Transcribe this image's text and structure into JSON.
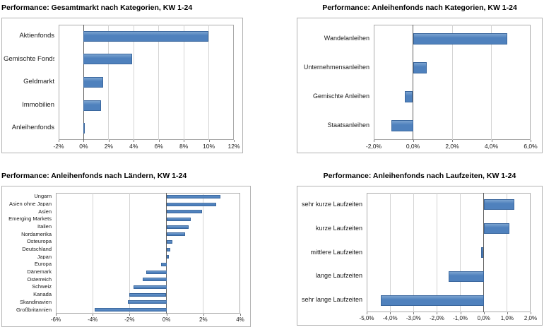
{
  "colors": {
    "bar_fill": "#4F81BD",
    "bar_border": "#3A679E",
    "gridline": "#D4D4D4",
    "zero_axis": "#5F5F5F",
    "plot_border": "#ABABAB",
    "chart_border": "#B3B3B3",
    "background": "#FFFFFF"
  },
  "chart_data": [
    {
      "type": "bar",
      "orientation": "horizontal",
      "title": "Performance: Gesamtmarkt nach Kategorien, KW 1-24",
      "categories": [
        "Aktienfonds",
        "Gemischte Fonds",
        "Geldmarkt",
        "Immobilien",
        "Anleihenfonds"
      ],
      "values": [
        10.0,
        3.9,
        1.6,
        1.4,
        0.1
      ],
      "xlim": [
        -2,
        12
      ],
      "xticks": [
        -2,
        0,
        2,
        4,
        6,
        8,
        10,
        12
      ],
      "xtick_labels": [
        "-2%",
        "0%",
        "2%",
        "4%",
        "6%",
        "8%",
        "10%",
        "12%"
      ],
      "xlabel": "",
      "ylabel": "",
      "grid": true,
      "legend": false
    },
    {
      "type": "bar",
      "orientation": "horizontal",
      "title": "Performance: Anleihenfonds nach Kategorien, KW 1-24",
      "categories": [
        "Wandelanleihen",
        "Unternehmensanleihen",
        "Gemischte Anleihen",
        "Staatsanleihen"
      ],
      "values": [
        4.8,
        0.7,
        -0.4,
        -1.1
      ],
      "xlim": [
        -2,
        6
      ],
      "xticks": [
        -2,
        0,
        2,
        4,
        6
      ],
      "xtick_labels": [
        "-2,0%",
        "0,0%",
        "2,0%",
        "4,0%",
        "6,0%"
      ],
      "xlabel": "",
      "ylabel": "",
      "grid": true,
      "legend": false
    },
    {
      "type": "bar",
      "orientation": "horizontal",
      "title": "Performance: Anleihenfonds nach Ländern, KW 1-24",
      "categories": [
        "Ungarn",
        "Asien ohne Japan",
        "Asien",
        "Emerging Markets",
        "Italien",
        "Nordamerika",
        "Osteuropa",
        "Deutschland",
        "Japan",
        "Europa",
        "Dänemark",
        "Österreich",
        "Schweiz",
        "Kanada",
        "Skandinavien",
        "Großbritannien"
      ],
      "values": [
        2.9,
        2.7,
        1.9,
        1.3,
        1.2,
        1.0,
        0.3,
        0.2,
        0.1,
        -0.3,
        -1.1,
        -1.3,
        -1.8,
        -2.0,
        -2.1,
        -3.9
      ],
      "xlim": [
        -6,
        4
      ],
      "xticks": [
        -6,
        -4,
        -2,
        0,
        2,
        4
      ],
      "xtick_labels": [
        "-6%",
        "-4%",
        "-2%",
        "0%",
        "2%",
        "4%"
      ],
      "xlabel": "",
      "ylabel": "",
      "grid": true,
      "legend": false
    },
    {
      "type": "bar",
      "orientation": "horizontal",
      "title": "Performance: Anleihenfonds nach Laufzeiten, KW 1-24",
      "categories": [
        "sehr kurze Laufzeiten",
        "kurze Laufzeiten",
        "mittlere Laufzeiten",
        "lange Laufzeiten",
        "sehr lange Laufzeiten"
      ],
      "values": [
        1.3,
        1.1,
        -0.1,
        -1.5,
        -4.4
      ],
      "xlim": [
        -5,
        2
      ],
      "xticks": [
        -5,
        -4,
        -3,
        -2,
        -1,
        0,
        1,
        2
      ],
      "xtick_labels": [
        "-5,0%",
        "-4,0%",
        "-3,0%",
        "-2,0%",
        "-1,0%",
        "0,0%",
        "1,0%",
        "2,0%"
      ],
      "xlabel": "",
      "ylabel": "",
      "grid": true,
      "legend": false
    }
  ]
}
